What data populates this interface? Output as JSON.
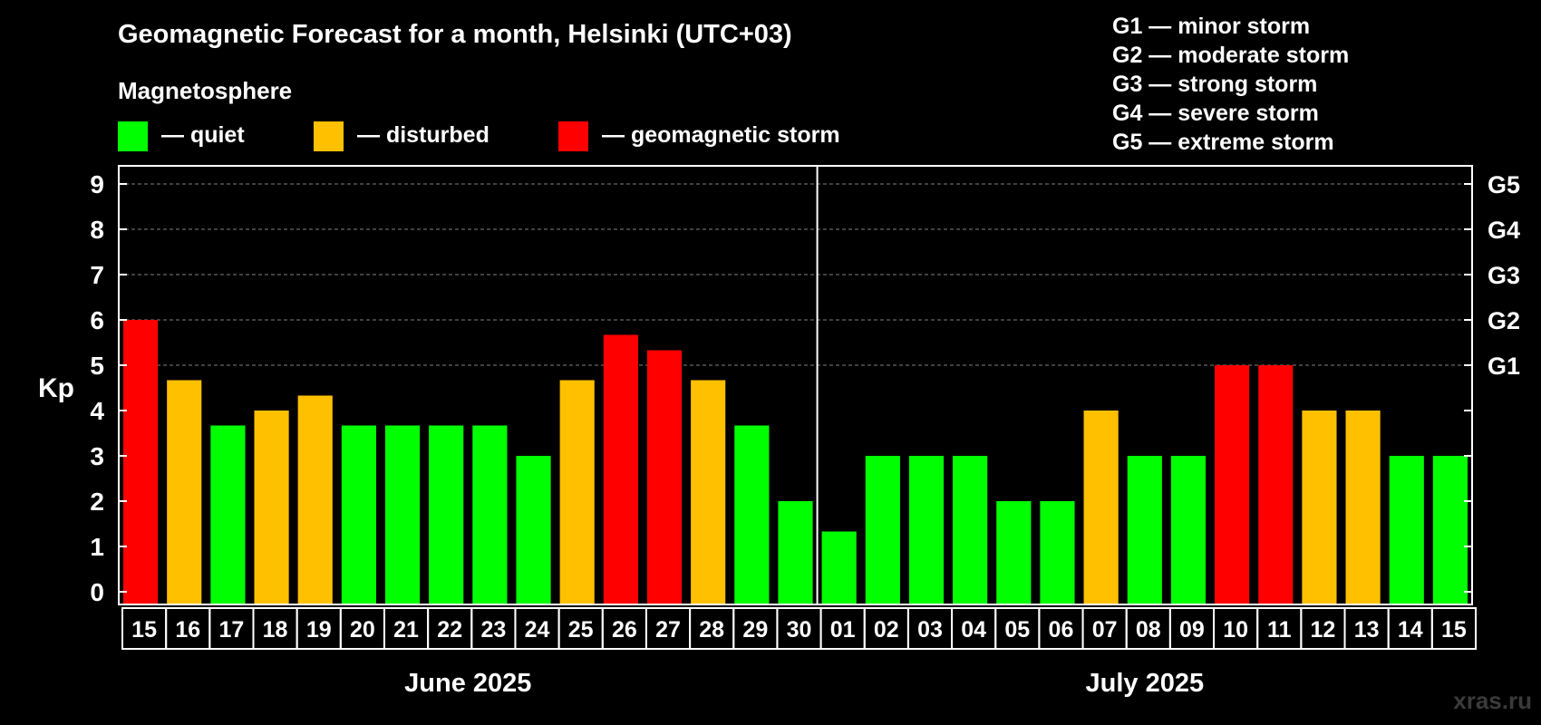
{
  "title": "Geomagnetic Forecast for a month, Helsinki (UTC+03)",
  "legend": {
    "heading": "Magnetosphere",
    "items": [
      {
        "label": "— quiet",
        "color": "#00FF00"
      },
      {
        "label": "— disturbed",
        "color": "#FFC000"
      },
      {
        "label": "— geomagnetic storm",
        "color": "#FF0000"
      }
    ]
  },
  "storm_scale": [
    "G1 — minor storm",
    "G2 — moderate storm",
    "G3 — strong storm",
    "G4 — severe storm",
    "G5 — extreme storm"
  ],
  "watermark": "xras.ru",
  "colors": {
    "background": "#000000",
    "quiet": "#00FF00",
    "disturbed": "#FFC000",
    "storm": "#FF0000",
    "axis": "#FFFFFF",
    "grid": "#808080"
  },
  "chart_data": {
    "type": "bar",
    "ylabel": "Kp",
    "ylim": [
      0,
      9
    ],
    "yticks": [
      "0",
      "1",
      "2",
      "3",
      "4",
      "5",
      "6",
      "7",
      "8",
      "9"
    ],
    "right_axis_labels": [
      {
        "kp": 5,
        "label": "G1"
      },
      {
        "kp": 6,
        "label": "G2"
      },
      {
        "kp": 7,
        "label": "G3"
      },
      {
        "kp": 8,
        "label": "G4"
      },
      {
        "kp": 9,
        "label": "G5"
      }
    ],
    "categories": [
      "15",
      "16",
      "17",
      "18",
      "19",
      "20",
      "21",
      "22",
      "23",
      "24",
      "25",
      "26",
      "27",
      "28",
      "29",
      "30",
      "01",
      "02",
      "03",
      "04",
      "05",
      "06",
      "07",
      "08",
      "09",
      "10",
      "11",
      "12",
      "13",
      "14",
      "15"
    ],
    "values": [
      6,
      4.67,
      3.67,
      4,
      4.33,
      3.67,
      3.67,
      3.67,
      3.67,
      3,
      4.67,
      5.67,
      5.33,
      4.67,
      3.67,
      2,
      1.33,
      3,
      3,
      3,
      2,
      2,
      4,
      3,
      3,
      5,
      5,
      4,
      4,
      3,
      3
    ],
    "status": [
      "storm",
      "disturbed",
      "quiet",
      "disturbed",
      "disturbed",
      "quiet",
      "quiet",
      "quiet",
      "quiet",
      "quiet",
      "disturbed",
      "storm",
      "storm",
      "disturbed",
      "quiet",
      "quiet",
      "quiet",
      "quiet",
      "quiet",
      "quiet",
      "quiet",
      "quiet",
      "disturbed",
      "quiet",
      "quiet",
      "storm",
      "storm",
      "disturbed",
      "disturbed",
      "quiet",
      "quiet"
    ],
    "months": [
      {
        "label": "June 2025",
        "count": 16
      },
      {
        "label": "July 2025",
        "count": 15
      }
    ],
    "grid": true
  }
}
